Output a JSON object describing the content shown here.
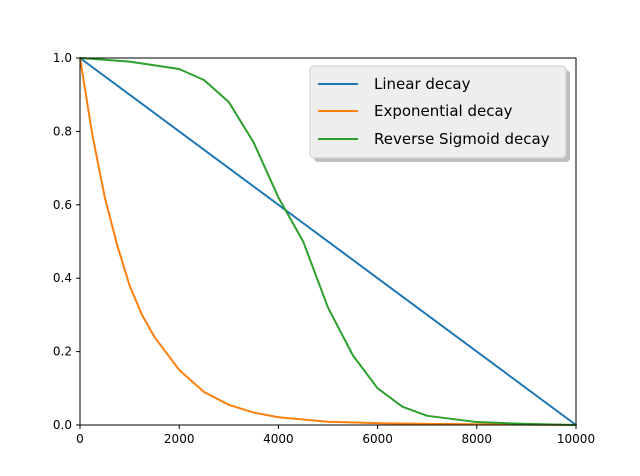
{
  "chart_data": {
    "type": "line",
    "title": "",
    "xlabel": "",
    "ylabel": "",
    "xlim": [
      0,
      10000
    ],
    "ylim": [
      0.0,
      1.0
    ],
    "x_ticks": [
      "0",
      "2000",
      "4000",
      "6000",
      "8000",
      "10000"
    ],
    "y_ticks": [
      "0.0",
      "0.2",
      "0.4",
      "0.6",
      "0.8",
      "1.0"
    ],
    "grid": false,
    "legend_position": "top-right",
    "series": [
      {
        "name": "Linear decay",
        "color": "#1f77b4",
        "x": [
          0,
          10000
        ],
        "y": [
          1.0,
          0.0
        ]
      },
      {
        "name": "Exponential decay",
        "color": "#ff7f0e",
        "x": [
          0,
          250,
          500,
          750,
          1000,
          1250,
          1500,
          2000,
          2500,
          3000,
          3500,
          4000,
          5000,
          6000,
          7000,
          8000,
          9000,
          10000
        ],
        "y": [
          1.0,
          0.79,
          0.62,
          0.49,
          0.38,
          0.3,
          0.24,
          0.15,
          0.09,
          0.055,
          0.034,
          0.021,
          0.009,
          0.005,
          0.003,
          0.002,
          0.001,
          0.0
        ]
      },
      {
        "name": "Reverse Sigmoid decay",
        "color": "#2ca02c",
        "x": [
          0,
          1000,
          2000,
          2500,
          3000,
          3500,
          4000,
          4500,
          5000,
          5500,
          6000,
          6500,
          7000,
          8000,
          9000,
          10000
        ],
        "y": [
          1.0,
          0.99,
          0.97,
          0.94,
          0.88,
          0.77,
          0.62,
          0.5,
          0.32,
          0.19,
          0.1,
          0.05,
          0.025,
          0.008,
          0.003,
          0.0
        ]
      }
    ]
  }
}
